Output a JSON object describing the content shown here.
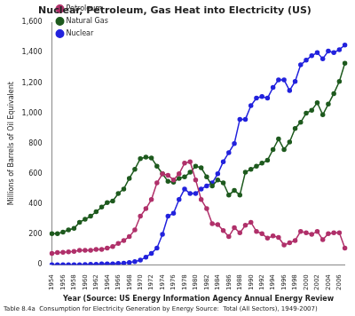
{
  "chart_data": {
    "type": "line",
    "title": "Nuclear, Petroleum, Gas Heat into Electricity (US)",
    "x_label": "Year (Source: US Energy Information Agency Annual Energy Review",
    "y_label": "Millions of Barrels of Oil Equivalent",
    "caption": "Table 8.4a  Consumption for Electricity Generation by Energy Source:  Total (All Sectors), 1949-2007)",
    "categories": [
      "1954",
      null,
      "1956",
      null,
      "1958",
      null,
      "1960",
      null,
      "1962",
      null,
      "1964",
      null,
      "1966",
      null,
      "1968",
      null,
      "1970",
      null,
      "1972",
      null,
      "1974",
      null,
      "1976",
      null,
      "1978",
      null,
      "1980",
      null,
      "1982",
      null,
      "1984",
      null,
      "1986",
      null,
      "1988",
      null,
      "1990",
      null,
      "1992",
      null,
      "1994",
      null,
      "1996",
      null,
      "1998",
      null,
      "2000",
      null,
      "2002",
      null,
      "2004",
      null,
      "2006",
      null
    ],
    "series": [
      {
        "name": "Petroleum",
        "color": "#b0306a",
        "marker": "circle",
        "values": [
          75,
          80,
          82,
          85,
          88,
          95,
          95,
          95,
          100,
          100,
          110,
          120,
          140,
          160,
          185,
          230,
          320,
          370,
          430,
          540,
          600,
          590,
          560,
          600,
          670,
          680,
          560,
          430,
          370,
          270,
          265,
          225,
          185,
          245,
          210,
          260,
          280,
          220,
          205,
          175,
          190,
          180,
          130,
          145,
          160,
          220,
          210,
          200,
          220,
          165,
          205,
          210,
          210,
          110
        ]
      },
      {
        "name": "Natural Gas",
        "color": "#1e5a1e",
        "marker": "circle",
        "values": [
          205,
          205,
          215,
          230,
          240,
          280,
          300,
          320,
          350,
          380,
          410,
          420,
          470,
          500,
          570,
          630,
          700,
          710,
          705,
          650,
          600,
          550,
          545,
          570,
          580,
          610,
          650,
          640,
          580,
          520,
          560,
          540,
          460,
          490,
          460,
          610,
          630,
          650,
          670,
          690,
          760,
          830,
          760,
          810,
          900,
          940,
          1000,
          1020,
          1070,
          990,
          1060,
          1130,
          1210,
          1330
        ]
      },
      {
        "name": "Nuclear",
        "color": "#2222dd",
        "marker": "circle",
        "values": [
          0,
          0,
          0,
          0,
          0,
          0,
          1,
          2,
          3,
          5,
          5,
          5,
          8,
          10,
          15,
          20,
          30,
          50,
          75,
          110,
          200,
          320,
          340,
          430,
          500,
          470,
          470,
          500,
          520,
          540,
          600,
          680,
          740,
          800,
          960,
          960,
          1050,
          1100,
          1110,
          1100,
          1170,
          1220,
          1220,
          1150,
          1210,
          1320,
          1350,
          1380,
          1400,
          1360,
          1410,
          1400,
          1420,
          1450
        ]
      }
    ],
    "ylim": [
      0,
      1600
    ],
    "yticks": [
      0,
      200,
      400,
      600,
      800,
      {
        "value": 1000,
        "label": "1,000"
      },
      {
        "value": 1200,
        "label": "1,200"
      },
      {
        "value": 1400,
        "label": "1,400"
      },
      {
        "value": 1600,
        "label": "1,600"
      }
    ],
    "grid": false,
    "legend": "upper left"
  }
}
